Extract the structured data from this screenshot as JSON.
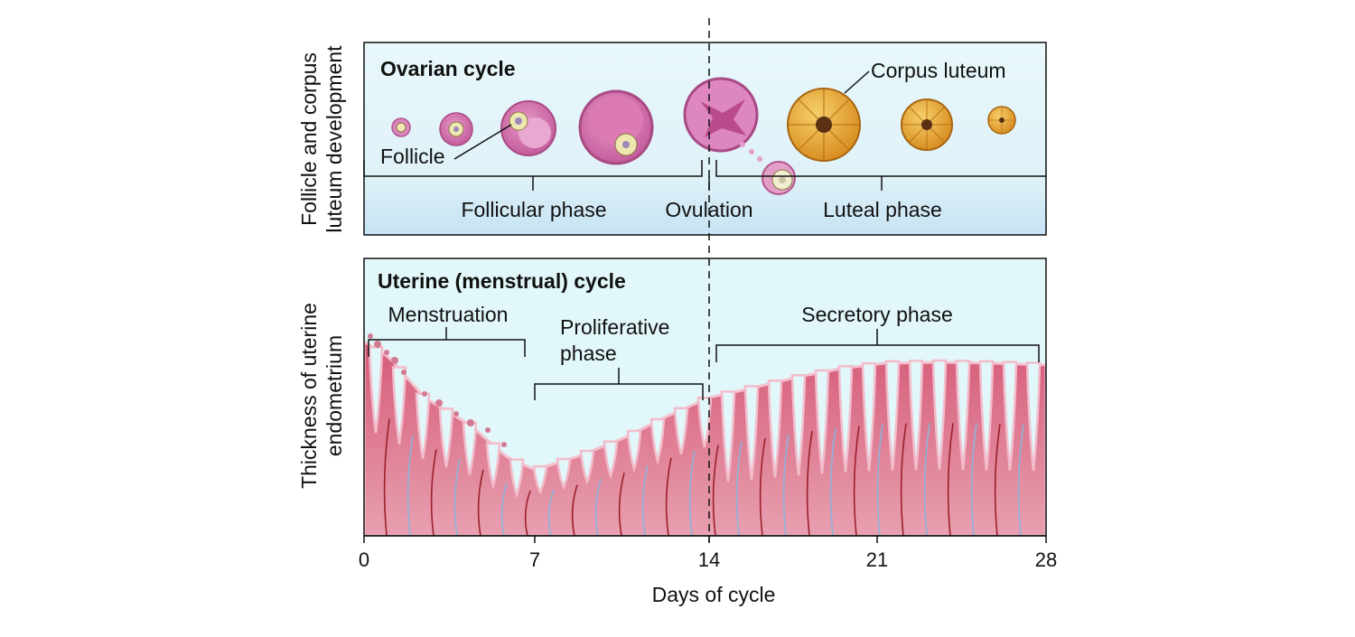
{
  "ovarian_panel": {
    "title": "Ovarian cycle",
    "y_axis_label_line1": "Follicle and corpus",
    "y_axis_label_line2": "luteum development",
    "labels": {
      "follicle": "Follicle",
      "corpus_luteum": "Corpus luteum",
      "follicular_phase": "Follicular phase",
      "ovulation": "Ovulation",
      "luteal_phase": "Luteal phase"
    },
    "colors": {
      "panel_top": "#e6f8fb",
      "panel_bottom": "#cfe6f5",
      "follicle": "#d97fb8",
      "corpus_luteum": "#e7a536"
    }
  },
  "uterine_panel": {
    "title": "Uterine (menstrual) cycle",
    "y_axis_label_line1": "Thickness of uterine",
    "y_axis_label_line2": "endometrium",
    "labels": {
      "menstruation": "Menstruation",
      "proliferative_line1": "Proliferative",
      "proliferative_line2": "phase",
      "secretory": "Secretory phase"
    },
    "colors": {
      "panel_bg": "#e2f7fa",
      "endometrium": "#d9677f",
      "gland_lining": "#f3bccb"
    }
  },
  "x_axis": {
    "label": "Days of cycle",
    "ticks": [
      "0",
      "7",
      "14",
      "21",
      "28"
    ]
  }
}
